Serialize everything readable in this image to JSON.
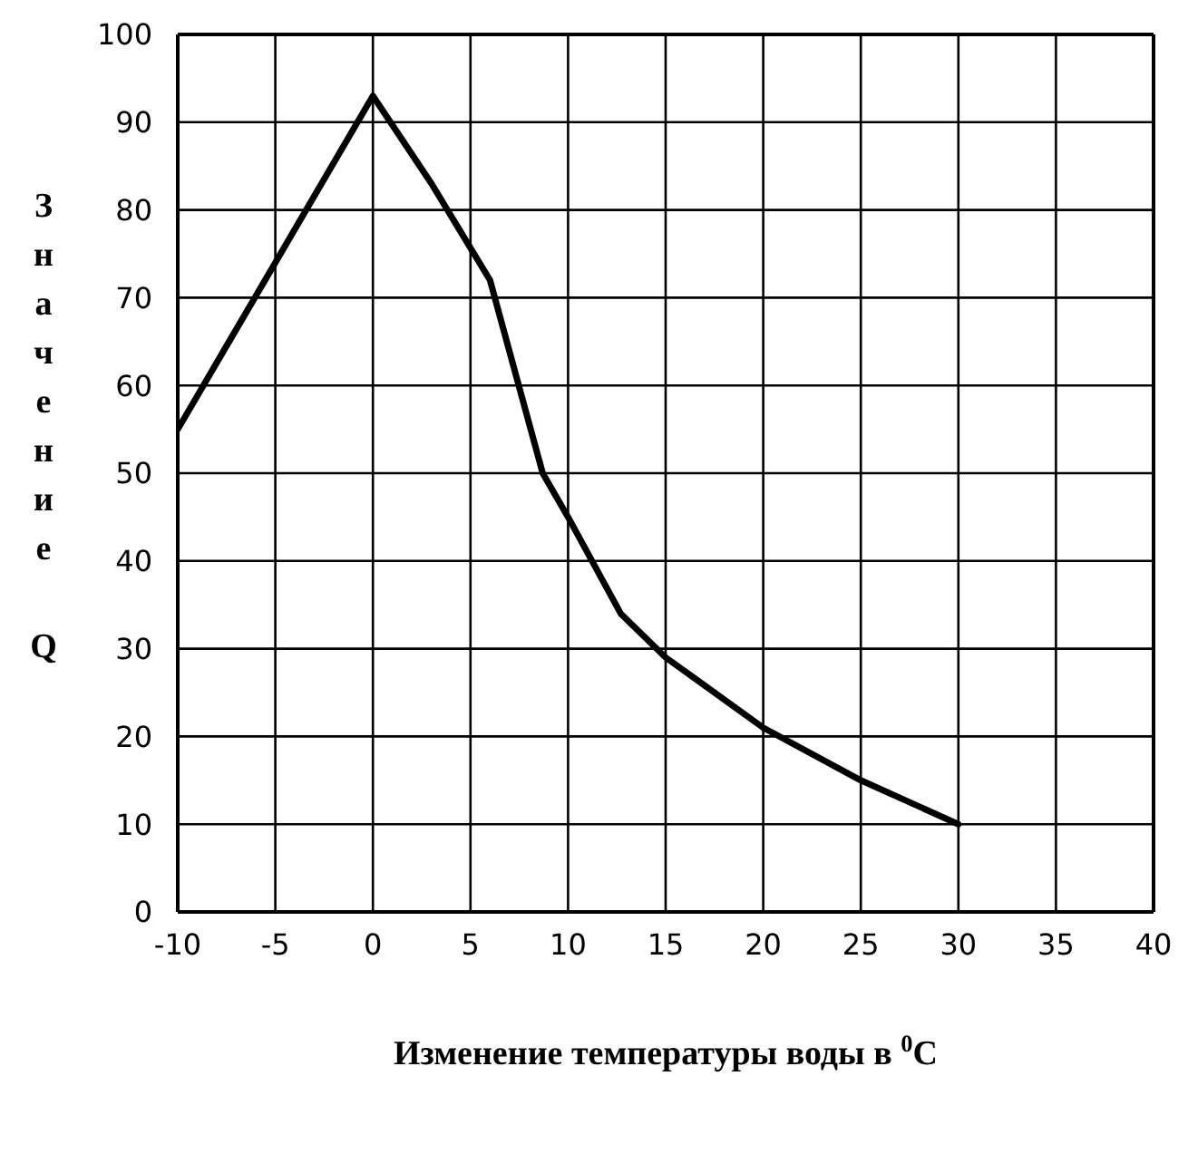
{
  "chart_data": {
    "type": "line",
    "xlabel": "Изменение температуры воды в $^{0}$C",
    "ylabel": "Значение Q",
    "series": [
      {
        "color": "#000000",
        "x": [
          -10,
          -5,
          0,
          3,
          6,
          8.7,
          10,
          12.7,
          15,
          20,
          25,
          30
        ],
        "values": [
          55,
          74,
          93,
          83,
          72,
          50,
          45,
          34,
          29,
          21,
          15,
          10
        ]
      }
    ],
    "xlim": [
      -10,
      40
    ],
    "xticks": [
      -10,
      -5,
      0,
      5,
      10,
      15,
      20,
      25,
      30,
      35,
      40
    ],
    "ylim": [
      0,
      100
    ],
    "yticks": [
      0,
      10,
      20,
      30,
      40,
      50,
      60,
      70,
      80,
      90,
      100
    ],
    "grid": true,
    "legend": false,
    "marker": "none",
    "line_style": "solid"
  }
}
